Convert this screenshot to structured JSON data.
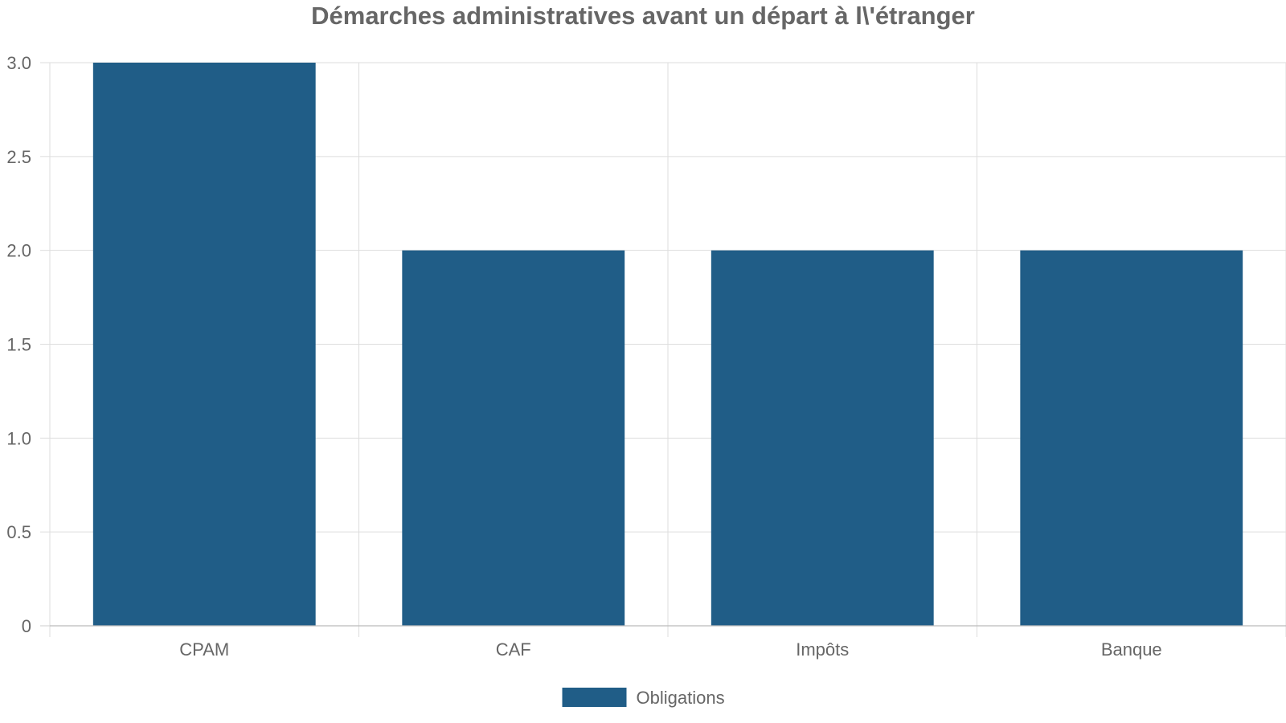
{
  "chart_data": {
    "type": "bar",
    "title": "Démarches administratives avant un départ à l\\'étranger",
    "categories": [
      "CPAM",
      "CAF",
      "Impôts",
      "Banque"
    ],
    "series": [
      {
        "name": "Obligations",
        "values": [
          3,
          2,
          2,
          2
        ],
        "color": "#205d87"
      }
    ],
    "ylim": [
      0,
      3
    ],
    "yticks": [
      "0",
      "0.5",
      "1.0",
      "1.5",
      "2.0",
      "2.5",
      "3.0"
    ],
    "grid": true,
    "legend": "bottom-center"
  }
}
